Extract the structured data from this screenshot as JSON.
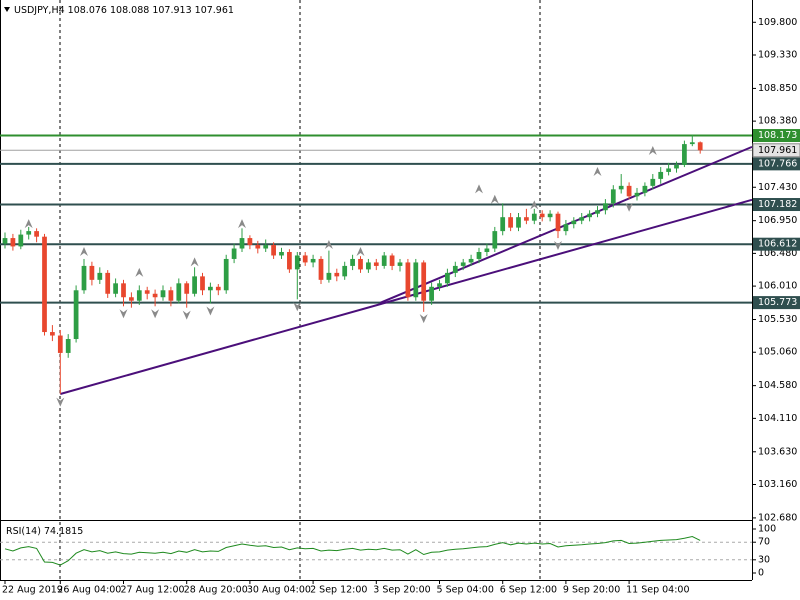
{
  "chart_data": {
    "type": "candlestick",
    "symbol": "USDJPY,H4",
    "colors": {
      "up": "#2e9e45",
      "down": "#e8472e",
      "trendline": "#4b0f7a",
      "price_line": "#a0a0a0",
      "fractal": "#8a8a8a",
      "rsi": "#1f8a1f"
    },
    "ylim": [
      102.65,
      110.12
    ],
    "xlim": [
      -0.633,
      94.557
    ],
    "yticks": [
      {
        "value": 109.8,
        "label": "109.800"
      },
      {
        "value": 109.33,
        "label": "109.330"
      },
      {
        "value": 108.85,
        "label": "108.850"
      },
      {
        "value": 108.38,
        "label": "108.380"
      },
      {
        "value": 107.43,
        "label": "107.430"
      },
      {
        "value": 106.95,
        "label": "106.950"
      },
      {
        "value": 106.48,
        "label": "106.480"
      },
      {
        "value": 106.01,
        "label": "106.010"
      },
      {
        "value": 105.53,
        "label": "105.530"
      },
      {
        "value": 105.06,
        "label": "105.060"
      },
      {
        "value": 104.58,
        "label": "104.580"
      },
      {
        "value": 104.11,
        "label": "104.110"
      },
      {
        "value": 103.63,
        "label": "103.630"
      },
      {
        "value": 103.16,
        "label": "103.160"
      },
      {
        "value": 102.68,
        "label": "102.680"
      }
    ],
    "xticks": [
      {
        "value": 0,
        "label": "22 Aug 2019"
      },
      {
        "value": 7,
        "label": "26 Aug 04:00"
      },
      {
        "value": 15,
        "label": "27 Aug 12:00"
      },
      {
        "value": 23,
        "label": "28 Aug 20:00"
      },
      {
        "value": 31,
        "label": "30 Aug 04:00"
      },
      {
        "value": 39,
        "label": "2 Sep 12:00"
      },
      {
        "value": 47,
        "label": "3 Sep 20:00"
      },
      {
        "value": 55,
        "label": "5 Sep 04:00"
      },
      {
        "value": 63,
        "label": "6 Sep 12:00"
      },
      {
        "value": 71,
        "label": "9 Sep 20:00"
      },
      {
        "value": 79,
        "label": "11 Sep 04:00"
      }
    ],
    "levels": [
      {
        "value": 108.173,
        "color": "#2f8f2f"
      },
      {
        "value": 107.766,
        "color": "#2f4f4f"
      },
      {
        "value": 107.182,
        "color": "#2f4f4f"
      },
      {
        "value": 106.612,
        "color": "#2f4f4f"
      },
      {
        "value": 105.773,
        "color": "#2f4f4f"
      }
    ],
    "trendlines": [
      {
        "start": [
          7,
          104.46
        ],
        "end": [
          94.557,
          107.25
        ]
      },
      {
        "start": [
          47.5,
          105.77
        ],
        "end": [
          94.557,
          108.01
        ]
      }
    ],
    "fractals": {
      "up": [
        [
          3,
          106.9
        ],
        [
          10,
          106.5
        ],
        [
          17,
          106.2
        ],
        [
          24,
          106.35
        ],
        [
          30,
          106.9
        ],
        [
          41,
          106.6
        ],
        [
          45,
          106.5
        ],
        [
          60,
          107.4
        ],
        [
          62,
          107.25
        ],
        [
          67,
          107.17
        ],
        [
          75,
          107.65
        ],
        [
          82,
          107.95
        ]
      ],
      "down": [
        [
          7,
          104.35
        ],
        [
          15,
          105.62
        ],
        [
          19,
          105.62
        ],
        [
          23,
          105.6
        ],
        [
          26,
          105.66
        ],
        [
          37,
          105.72
        ],
        [
          53,
          105.55
        ],
        [
          70,
          106.6
        ],
        [
          79,
          107.15
        ]
      ]
    },
    "candles": [
      [
        106.62,
        106.78,
        106.55,
        106.7
      ],
      [
        106.7,
        106.76,
        106.52,
        106.58
      ],
      [
        106.58,
        106.82,
        106.54,
        106.75
      ],
      [
        106.75,
        106.86,
        106.68,
        106.8
      ],
      [
        106.8,
        106.84,
        106.64,
        106.72
      ],
      [
        106.72,
        106.76,
        105.3,
        105.35
      ],
      [
        105.35,
        105.45,
        105.22,
        105.3
      ],
      [
        105.3,
        105.38,
        104.46,
        105.05
      ],
      [
        105.05,
        105.32,
        104.98,
        105.25
      ],
      [
        105.25,
        106.02,
        105.2,
        105.95
      ],
      [
        105.95,
        106.4,
        105.9,
        106.3
      ],
      [
        106.3,
        106.36,
        106.02,
        106.1
      ],
      [
        106.1,
        106.28,
        106.04,
        106.2
      ],
      [
        106.2,
        106.24,
        105.84,
        105.9
      ],
      [
        105.9,
        106.12,
        105.85,
        106.05
      ],
      [
        106.05,
        106.1,
        105.72,
        105.85
      ],
      [
        105.85,
        105.92,
        105.7,
        105.8
      ],
      [
        105.8,
        106.02,
        105.74,
        105.95
      ],
      [
        105.95,
        106.0,
        105.82,
        105.9
      ],
      [
        105.9,
        105.96,
        105.72,
        105.85
      ],
      [
        105.85,
        106.02,
        105.8,
        105.95
      ],
      [
        105.95,
        106.0,
        105.72,
        105.8
      ],
      [
        105.8,
        106.12,
        105.76,
        106.05
      ],
      [
        106.05,
        106.08,
        105.7,
        105.9
      ],
      [
        105.9,
        106.28,
        105.86,
        106.15
      ],
      [
        106.15,
        106.2,
        105.88,
        105.95
      ],
      [
        105.95,
        106.06,
        105.76,
        106.0
      ],
      [
        106.0,
        106.04,
        105.88,
        105.95
      ],
      [
        105.95,
        106.46,
        105.9,
        106.4
      ],
      [
        106.4,
        106.62,
        106.34,
        106.55
      ],
      [
        106.55,
        106.84,
        106.5,
        106.7
      ],
      [
        106.7,
        106.74,
        106.54,
        106.6
      ],
      [
        106.6,
        106.66,
        106.48,
        106.55
      ],
      [
        106.55,
        106.68,
        106.5,
        106.6
      ],
      [
        106.6,
        106.64,
        106.4,
        106.45
      ],
      [
        106.45,
        106.56,
        106.4,
        106.5
      ],
      [
        106.5,
        106.54,
        106.2,
        106.25
      ],
      [
        106.25,
        106.5,
        105.82,
        106.45
      ],
      [
        106.45,
        106.5,
        106.3,
        106.35
      ],
      [
        106.35,
        106.46,
        106.28,
        106.4
      ],
      [
        106.4,
        106.44,
        106.04,
        106.1
      ],
      [
        106.1,
        106.52,
        106.06,
        106.2
      ],
      [
        106.2,
        106.26,
        106.08,
        106.15
      ],
      [
        106.15,
        106.36,
        106.1,
        106.3
      ],
      [
        106.3,
        106.46,
        106.24,
        106.4
      ],
      [
        106.4,
        106.44,
        106.2,
        106.25
      ],
      [
        106.25,
        106.4,
        106.2,
        106.35
      ],
      [
        106.35,
        106.4,
        106.24,
        106.3
      ],
      [
        106.3,
        106.5,
        106.26,
        106.45
      ],
      [
        106.45,
        106.48,
        106.24,
        106.3
      ],
      [
        106.3,
        106.4,
        106.22,
        106.35
      ],
      [
        106.35,
        106.4,
        105.8,
        105.85
      ],
      [
        105.85,
        106.4,
        105.8,
        106.35
      ],
      [
        106.35,
        106.38,
        105.64,
        105.8
      ],
      [
        105.8,
        106.06,
        105.74,
        106.0
      ],
      [
        106.0,
        106.1,
        105.94,
        106.05
      ],
      [
        106.05,
        106.26,
        106.0,
        106.2
      ],
      [
        106.2,
        106.36,
        106.14,
        106.3
      ],
      [
        106.3,
        106.4,
        106.24,
        106.35
      ],
      [
        106.35,
        106.46,
        106.3,
        106.4
      ],
      [
        106.4,
        106.56,
        106.34,
        106.5
      ],
      [
        106.5,
        106.62,
        106.44,
        106.55
      ],
      [
        106.55,
        106.86,
        106.5,
        106.8
      ],
      [
        106.8,
        107.2,
        106.74,
        107.0
      ],
      [
        107.0,
        107.06,
        106.8,
        106.85
      ],
      [
        106.85,
        107.06,
        106.8,
        107.0
      ],
      [
        107.0,
        107.12,
        106.9,
        106.95
      ],
      [
        106.95,
        107.12,
        106.9,
        107.05
      ],
      [
        107.05,
        107.1,
        106.94,
        107.0
      ],
      [
        107.0,
        107.1,
        106.94,
        107.05
      ],
      [
        107.05,
        107.08,
        106.7,
        106.8
      ],
      [
        106.8,
        106.96,
        106.74,
        106.9
      ],
      [
        106.9,
        107.0,
        106.84,
        106.95
      ],
      [
        106.95,
        107.06,
        106.9,
        107.0
      ],
      [
        107.0,
        107.1,
        106.94,
        107.05
      ],
      [
        107.05,
        107.16,
        107.0,
        107.1
      ],
      [
        107.1,
        107.26,
        107.04,
        107.2
      ],
      [
        107.2,
        107.46,
        107.14,
        107.4
      ],
      [
        107.4,
        107.62,
        107.34,
        107.45
      ],
      [
        107.45,
        107.5,
        107.26,
        107.3
      ],
      [
        107.3,
        107.42,
        107.24,
        107.35
      ],
      [
        107.35,
        107.5,
        107.3,
        107.45
      ],
      [
        107.45,
        107.62,
        107.4,
        107.55
      ],
      [
        107.55,
        107.72,
        107.48,
        107.65
      ],
      [
        107.65,
        107.78,
        107.6,
        107.7
      ],
      [
        107.7,
        107.8,
        107.64,
        107.75
      ],
      [
        107.75,
        108.1,
        107.72,
        108.05
      ],
      [
        108.05,
        108.18,
        108.02,
        108.076
      ],
      [
        108.076,
        108.088,
        107.913,
        107.961
      ]
    ],
    "rsi": {
      "label": "RSI(14)",
      "ylim": [
        -15.9,
        118.2
      ],
      "yticks": [
        100,
        70,
        30,
        0
      ],
      "levels": [
        70,
        30
      ],
      "values": [
        55,
        50,
        57,
        60,
        56,
        25,
        24,
        18,
        28,
        45,
        53,
        48,
        51,
        45,
        48,
        44,
        43,
        47,
        46,
        45,
        47,
        44,
        50,
        47,
        53,
        48,
        50,
        49,
        58,
        62,
        66,
        63,
        61,
        62,
        58,
        59,
        53,
        57,
        55,
        56,
        50,
        52,
        51,
        54,
        56,
        52,
        54,
        53,
        56,
        52,
        53,
        43,
        53,
        42,
        47,
        48,
        52,
        54,
        55,
        57,
        59,
        60,
        65,
        69,
        64,
        68,
        66,
        68,
        66,
        67,
        59,
        62,
        63,
        64,
        66,
        67,
        69,
        73,
        74,
        67,
        68,
        70,
        72,
        74,
        75,
        76,
        79,
        83,
        74.1815
      ]
    }
  }
}
